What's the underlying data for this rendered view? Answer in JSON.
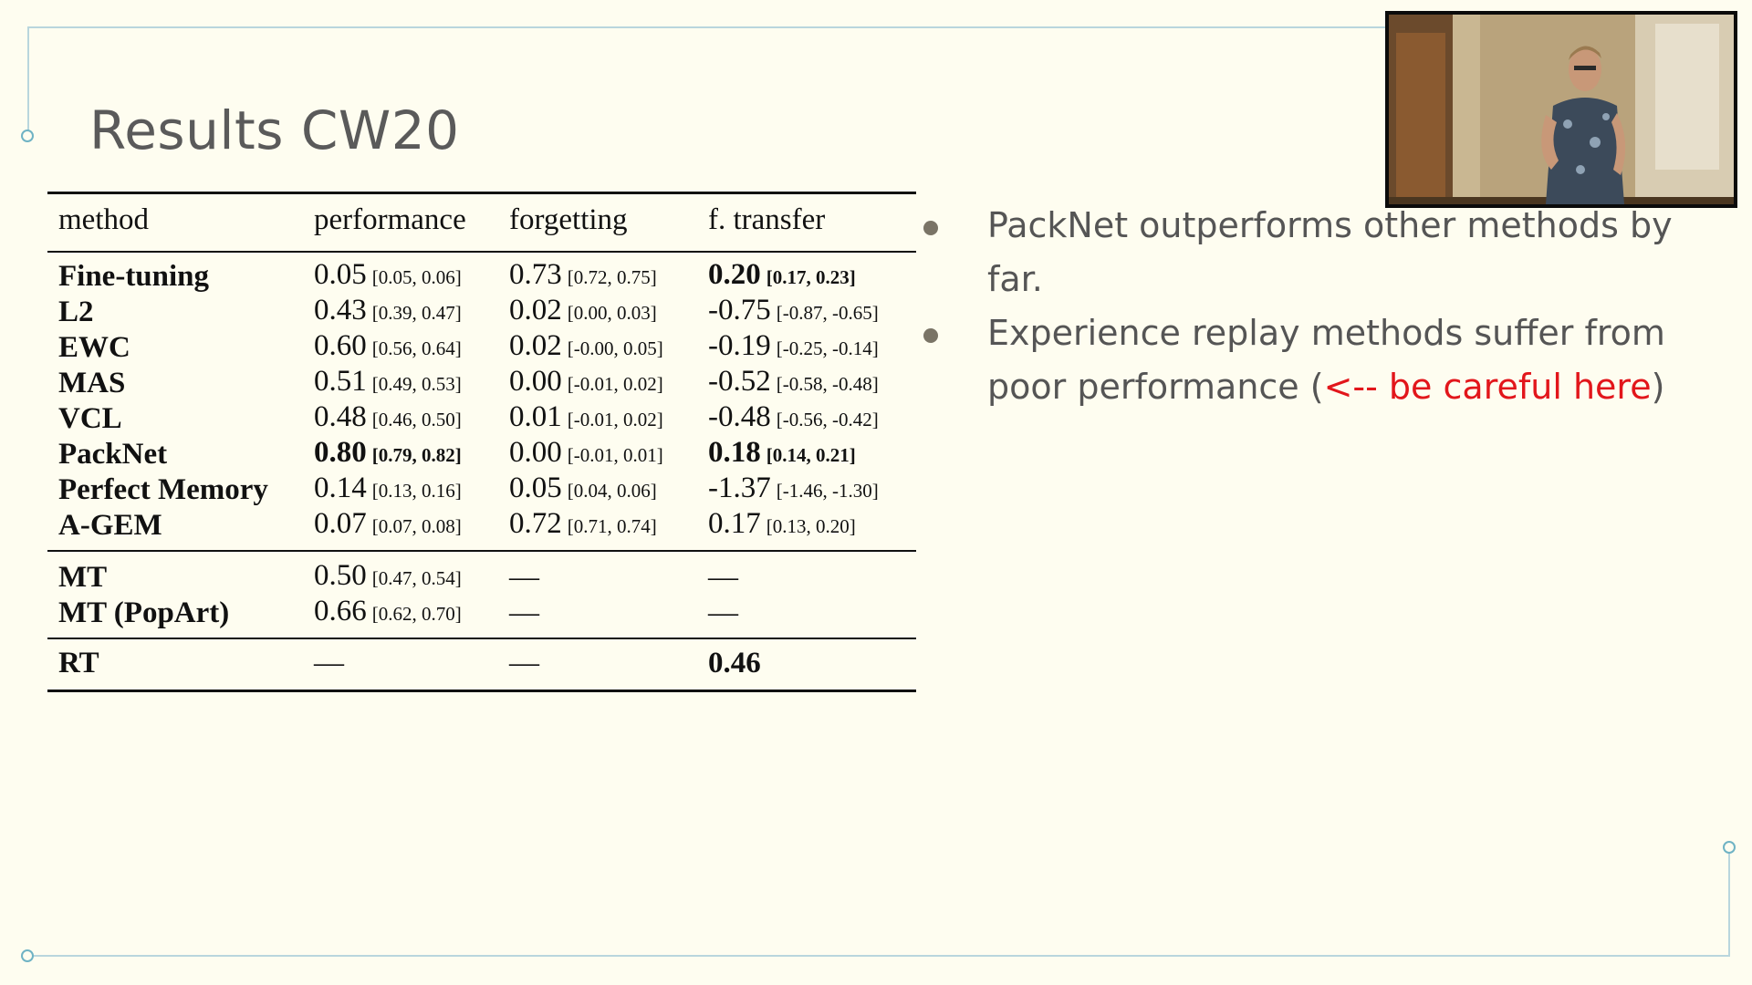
{
  "slide": {
    "title": "Results CW20"
  },
  "table": {
    "headers": [
      "method",
      "performance",
      "forgetting",
      "f. transfer"
    ],
    "rows": [
      {
        "method": "Fine-tuning",
        "performance": {
          "value": "0.05",
          "ci": "[0.05, 0.06]"
        },
        "forgetting": {
          "value": "0.73",
          "ci": "[0.72, 0.75]"
        },
        "transfer": {
          "value": "0.20",
          "ci": "[0.17, 0.23]"
        }
      },
      {
        "method": "L2",
        "performance": {
          "value": "0.43",
          "ci": "[0.39, 0.47]"
        },
        "forgetting": {
          "value": "0.02",
          "ci": "[0.00, 0.03]"
        },
        "transfer": {
          "value": "-0.75",
          "ci": "[-0.87, -0.65]"
        }
      },
      {
        "method": "EWC",
        "performance": {
          "value": "0.60",
          "ci": "[0.56, 0.64]"
        },
        "forgetting": {
          "value": "0.02",
          "ci": "[-0.00, 0.05]"
        },
        "transfer": {
          "value": "-0.19",
          "ci": "[-0.25, -0.14]"
        }
      },
      {
        "method": "MAS",
        "performance": {
          "value": "0.51",
          "ci": "[0.49, 0.53]"
        },
        "forgetting": {
          "value": "0.00",
          "ci": "[-0.01, 0.02]"
        },
        "transfer": {
          "value": "-0.52",
          "ci": "[-0.58, -0.48]"
        }
      },
      {
        "method": "VCL",
        "performance": {
          "value": "0.48",
          "ci": "[0.46, 0.50]"
        },
        "forgetting": {
          "value": "0.01",
          "ci": "[-0.01, 0.02]"
        },
        "transfer": {
          "value": "-0.48",
          "ci": "[-0.56, -0.42]"
        }
      },
      {
        "method": "PackNet",
        "performance": {
          "value": "0.80",
          "ci": "[0.79, 0.82]"
        },
        "forgetting": {
          "value": "0.00",
          "ci": "[-0.01, 0.01]"
        },
        "transfer": {
          "value": "0.18",
          "ci": "[0.14, 0.21]"
        }
      },
      {
        "method": "Perfect Memory",
        "performance": {
          "value": "0.14",
          "ci": "[0.13, 0.16]"
        },
        "forgetting": {
          "value": "0.05",
          "ci": "[0.04, 0.06]"
        },
        "transfer": {
          "value": "-1.37",
          "ci": "[-1.46, -1.30]"
        }
      },
      {
        "method": "A-GEM",
        "performance": {
          "value": "0.07",
          "ci": "[0.07, 0.08]"
        },
        "forgetting": {
          "value": "0.72",
          "ci": "[0.71, 0.74]"
        },
        "transfer": {
          "value": "0.17",
          "ci": "[0.13, 0.20]"
        }
      },
      {
        "method": "MT",
        "performance": {
          "value": "0.50",
          "ci": "[0.47, 0.54]"
        },
        "forgetting": {
          "value": "—",
          "ci": ""
        },
        "transfer": {
          "value": "—",
          "ci": ""
        }
      },
      {
        "method": "MT (PopArt)",
        "performance": {
          "value": "0.66",
          "ci": "[0.62, 0.70]"
        },
        "forgetting": {
          "value": "—",
          "ci": ""
        },
        "transfer": {
          "value": "—",
          "ci": ""
        }
      },
      {
        "method": "RT",
        "performance": {
          "value": "—",
          "ci": ""
        },
        "forgetting": {
          "value": "—",
          "ci": ""
        },
        "transfer": {
          "value": "0.46",
          "ci": ""
        }
      }
    ]
  },
  "bullets": [
    {
      "text": "PackNet outperforms other methods by far."
    },
    {
      "text": "Experience replay methods suffer from poor performance (",
      "warning": "<-- be careful here",
      "suffix": ")"
    }
  ],
  "colors": {
    "background": "#fefdf0",
    "title": "#5a5a5a",
    "warning": "#e2161b",
    "frame": "#b9d6dd"
  }
}
